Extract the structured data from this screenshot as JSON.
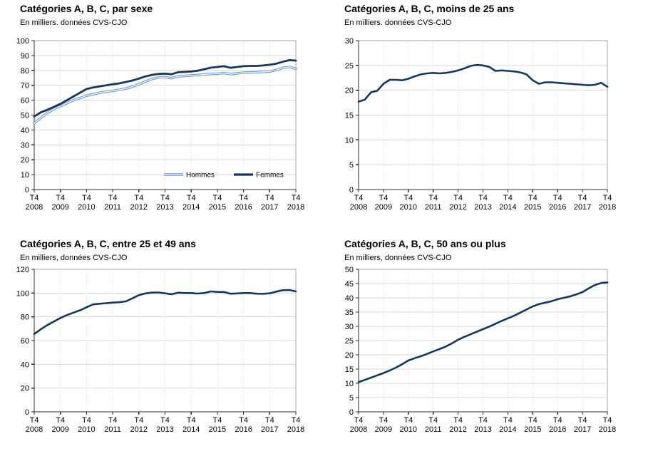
{
  "colors": {
    "navy": "#17375d",
    "light_blue": "#6b9ad4",
    "outline_core": "#ffffff",
    "grid": "#d9d9d9",
    "plot_border": "#a6a6a6",
    "axis": "#2b2b2b",
    "text": "#000000",
    "background": "#ffffff"
  },
  "chart_data": [
    {
      "type": "line",
      "title": "Catégories A, B, C, par sexe",
      "subtitle": "En milliers. données CVS-CJO",
      "xlabel": "",
      "ylabel": "",
      "ylim": [
        0,
        100
      ],
      "y_ticks": [
        0,
        10,
        20,
        30,
        40,
        50,
        60,
        70,
        80,
        90,
        100
      ],
      "x_tick_labels": [
        "T4 2008",
        "T4 2009",
        "T4 2010",
        "T4 2011",
        "T4 2012",
        "T4 2013",
        "T4 2014",
        "T4 2015",
        "T4 2016",
        "T4 2017",
        "T4 2018"
      ],
      "x_unit": "trimestre",
      "grid": {
        "horizontal": "solid",
        "vertical": "dotted"
      },
      "legend": {
        "visible": true,
        "position": "inside-bottom"
      },
      "series": [
        {
          "name": "Hommes",
          "color": "#6b9ad4",
          "style": "outline",
          "stroke_width": 3.4,
          "values": [
            44.5,
            48,
            51.5,
            54,
            56,
            58,
            60,
            61.5,
            63,
            64,
            65,
            65.7,
            66.3,
            67,
            67.8,
            69,
            70.7,
            72.5,
            74.3,
            75.2,
            75.5,
            74.8,
            76,
            76.3,
            76.6,
            76.9,
            77.3,
            77.6,
            77.8,
            78.2,
            77.5,
            78,
            78.4,
            78.6,
            78.8,
            79,
            79.3,
            80.3,
            81.7,
            82.3,
            81.2
          ]
        },
        {
          "name": "Femmes",
          "color": "#17375d",
          "style": "solid",
          "stroke_width": 2.8,
          "values": [
            49,
            51.8,
            53.5,
            55.5,
            57.5,
            60,
            62.5,
            65,
            67.5,
            68.5,
            69.3,
            70,
            70.7,
            71.3,
            72.2,
            73.2,
            74.5,
            76,
            77,
            77.6,
            77.8,
            77.4,
            78.8,
            79,
            79.3,
            79.8,
            80.8,
            81.8,
            82.3,
            82.8,
            81.7,
            82.3,
            82.8,
            83,
            83,
            83.3,
            83.8,
            84.5,
            85.8,
            86.9,
            86.6
          ]
        }
      ]
    },
    {
      "type": "line",
      "title": "Catégories A, B, C, moins de 25 ans",
      "subtitle": "En milliers. données CVS-CJO",
      "xlabel": "",
      "ylabel": "",
      "ylim": [
        0,
        30
      ],
      "y_ticks": [
        0,
        5,
        10,
        15,
        20,
        25,
        30
      ],
      "x_tick_labels": [
        "T4 2008",
        "T4 2009",
        "T4 2010",
        "T4 2011",
        "T4 2012",
        "T4 2013",
        "T4 2014",
        "T4 2015",
        "T4 2016",
        "T4 2017",
        "T4 2018"
      ],
      "x_unit": "trimestre",
      "grid": {
        "horizontal": "solid",
        "vertical": "dotted"
      },
      "legend": {
        "visible": false
      },
      "series": [
        {
          "name": "Moins de 25 ans",
          "color": "#17375d",
          "style": "solid",
          "stroke_width": 2.6,
          "values": [
            17.7,
            18.1,
            19.6,
            19.9,
            21.3,
            22.1,
            22.1,
            22,
            22.3,
            22.8,
            23.2,
            23.4,
            23.5,
            23.4,
            23.5,
            23.7,
            24,
            24.4,
            24.9,
            25.1,
            25,
            24.7,
            23.9,
            24,
            23.9,
            23.8,
            23.6,
            23.2,
            22,
            21.3,
            21.6,
            21.6,
            21.5,
            21.4,
            21.3,
            21.2,
            21.1,
            21,
            21.1,
            21.5,
            20.7
          ]
        }
      ]
    },
    {
      "type": "line",
      "title": "Catégories A, B, C, entre 25 et 49 ans",
      "subtitle": "En milliers, données CVS-CJO",
      "xlabel": "",
      "ylabel": "",
      "ylim": [
        0,
        120
      ],
      "y_ticks": [
        0,
        20,
        40,
        60,
        80,
        100,
        120
      ],
      "x_tick_labels": [
        "T4 2008",
        "T4 2009",
        "T4 2010",
        "T4 2011",
        "T4 2012",
        "T4 2013",
        "T4 2014",
        "T4 2015",
        "T4 2016",
        "T4 2017",
        "T4 2018"
      ],
      "x_unit": "trimestre",
      "grid": {
        "horizontal": "solid",
        "vertical": "dotted"
      },
      "legend": {
        "visible": false
      },
      "series": [
        {
          "name": "Entre 25 et 49 ans",
          "color": "#17375d",
          "style": "solid",
          "stroke_width": 2.6,
          "values": [
            65.5,
            69.5,
            73,
            76,
            79,
            81.5,
            83.5,
            85.5,
            88,
            90.5,
            91,
            91.5,
            92,
            92.3,
            93,
            95.5,
            98.3,
            99.7,
            100.4,
            100.5,
            99.8,
            99,
            100.3,
            100,
            100,
            99.6,
            100,
            101.4,
            101,
            100.9,
            99.5,
            99.7,
            100,
            100,
            99.5,
            99.4,
            99.8,
            101.2,
            102.4,
            102.6,
            101.4
          ]
        }
      ]
    },
    {
      "type": "line",
      "title": "Catégories A, B, C, 50 ans ou plus",
      "subtitle": "En milliers, données CVS-CJO",
      "xlabel": "",
      "ylabel": "",
      "ylim": [
        0,
        50
      ],
      "y_ticks": [
        0,
        5,
        10,
        15,
        20,
        25,
        30,
        35,
        40,
        45,
        50
      ],
      "x_tick_labels": [
        "T4 2008",
        "T4 2009",
        "T4 2010",
        "T4 2011",
        "T4 2012",
        "T4 2013",
        "T4 2014",
        "T4 2015",
        "T4 2016",
        "T4 2017",
        "T4 2018"
      ],
      "x_unit": "trimestre",
      "grid": {
        "horizontal": "solid",
        "vertical": "dotted"
      },
      "legend": {
        "visible": false
      },
      "series": [
        {
          "name": "50 ans ou plus",
          "color": "#17375d",
          "style": "solid",
          "stroke_width": 2.6,
          "values": [
            10.4,
            11.2,
            12,
            12.8,
            13.6,
            14.5,
            15.5,
            16.7,
            18,
            18.8,
            19.5,
            20.3,
            21.2,
            22,
            22.9,
            24,
            25.3,
            26.3,
            27.2,
            28.1,
            29,
            29.9,
            30.9,
            31.9,
            32.8,
            33.7,
            34.8,
            35.9,
            37,
            37.8,
            38.3,
            38.8,
            39.5,
            40,
            40.5,
            41.2,
            42,
            43.3,
            44.5,
            45.2,
            45.4
          ]
        }
      ]
    }
  ]
}
